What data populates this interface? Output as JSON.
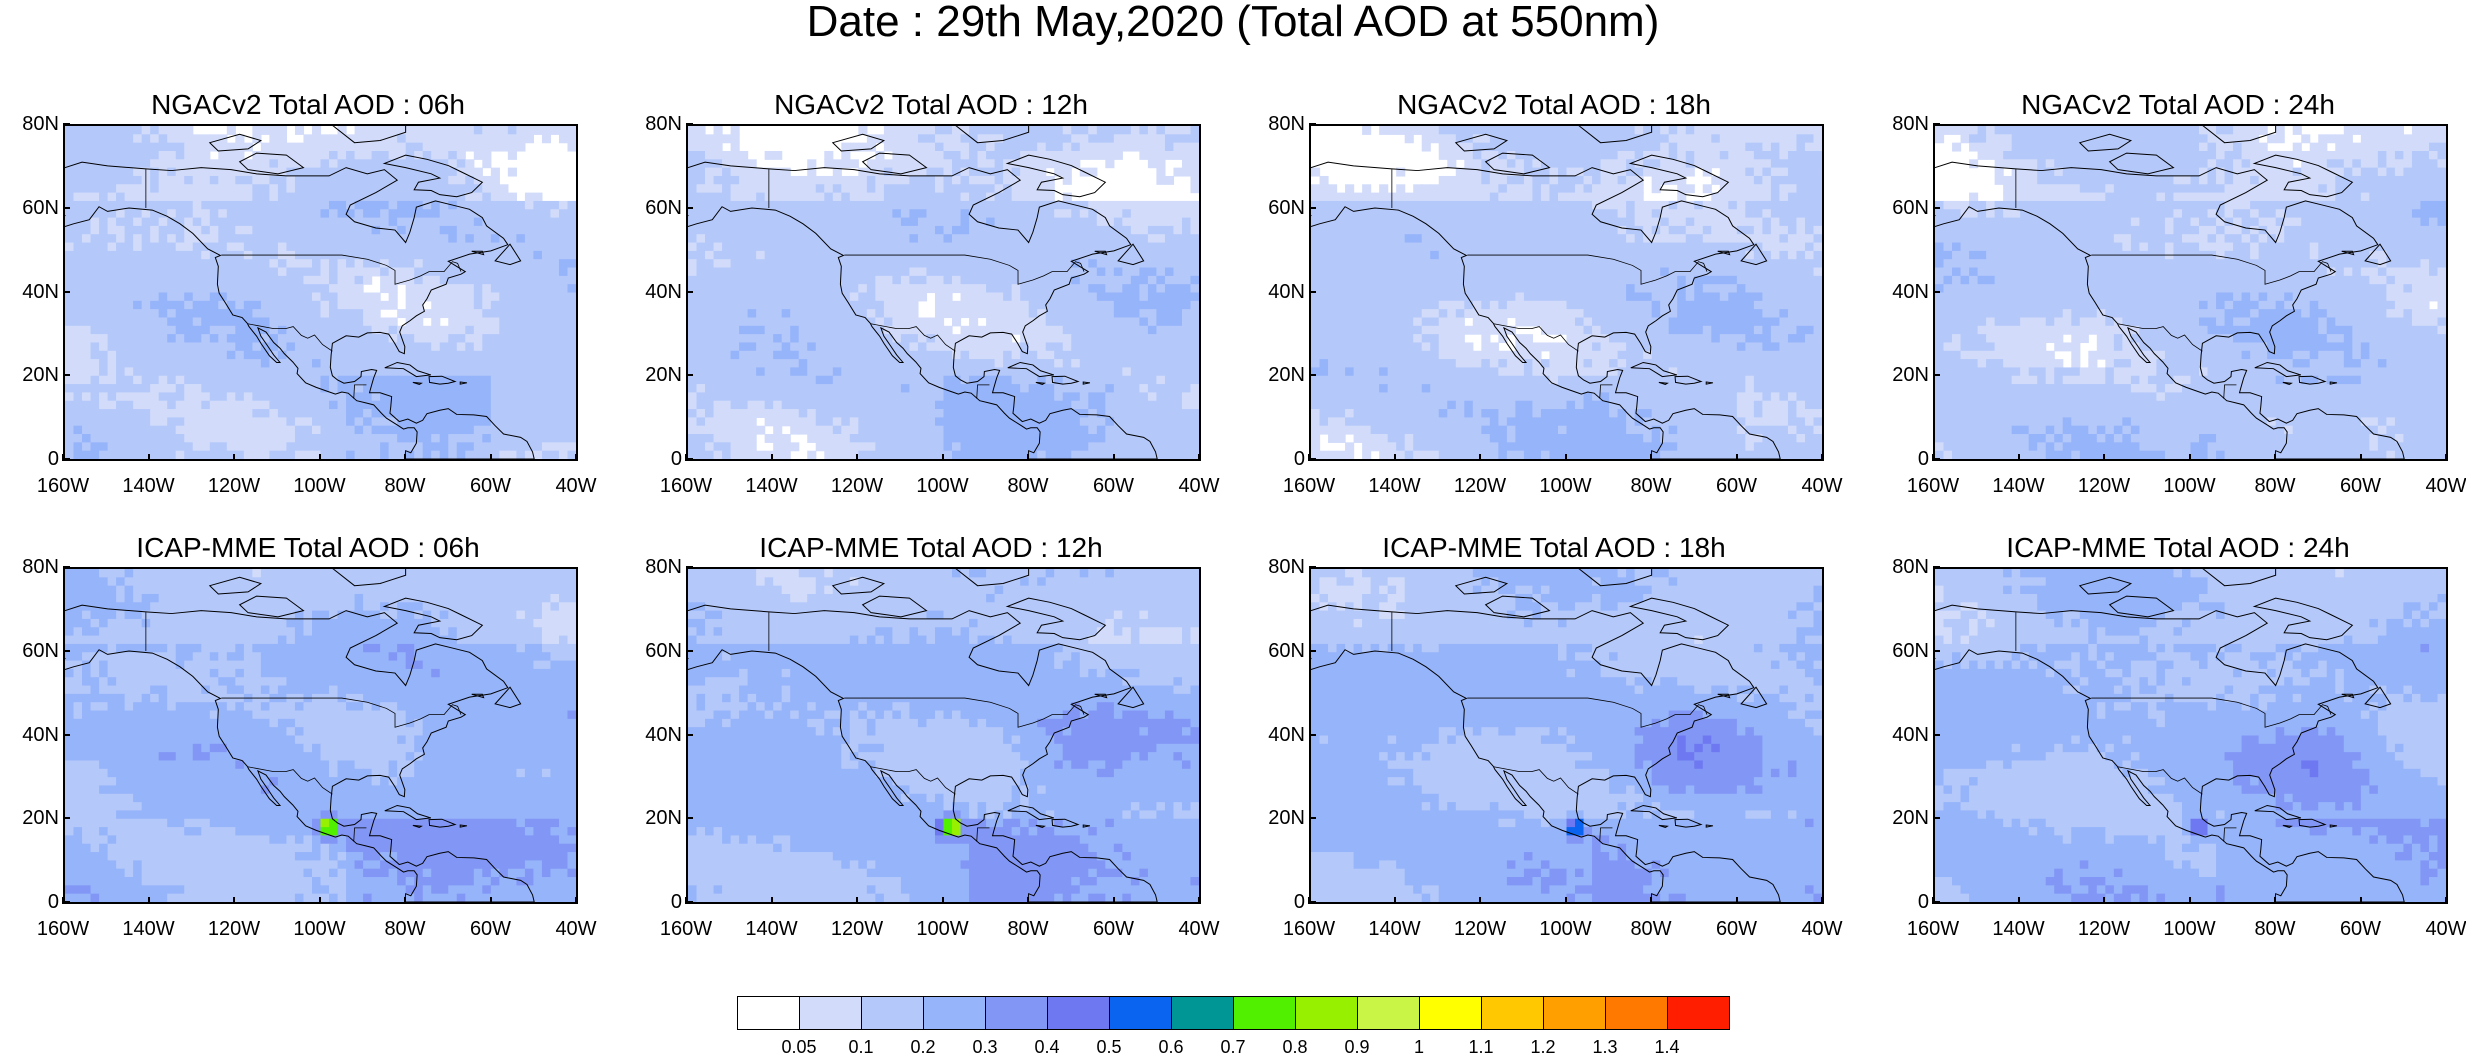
{
  "title": "Date : 29th May,2020 (Total AOD at 550nm)",
  "panels": [
    {
      "title": "NGACv2 Total AOD : 06h",
      "model": "NGAC",
      "hour": 6
    },
    {
      "title": "NGACv2 Total AOD : 12h",
      "model": "NGAC",
      "hour": 12
    },
    {
      "title": "NGACv2 Total AOD : 18h",
      "model": "NGAC",
      "hour": 18
    },
    {
      "title": "NGACv2 Total AOD : 24h",
      "model": "NGAC",
      "hour": 24
    },
    {
      "title": "ICAP-MME Total AOD : 06h",
      "model": "ICAP",
      "hour": 6
    },
    {
      "title": "ICAP-MME Total AOD : 12h",
      "model": "ICAP",
      "hour": 12
    },
    {
      "title": "ICAP-MME Total AOD : 18h",
      "model": "ICAP",
      "hour": 18
    },
    {
      "title": "ICAP-MME Total AOD : 24h",
      "model": "ICAP",
      "hour": 24
    }
  ],
  "lat_labels": [
    "80N",
    "60N",
    "40N",
    "20N",
    "0"
  ],
  "lon_labels": [
    "160W",
    "140W",
    "120W",
    "100W",
    "80W",
    "60W",
    "40W"
  ],
  "map_extent": {
    "lon": [
      -160,
      -40
    ],
    "lat": [
      0,
      80
    ]
  },
  "colorbar": {
    "labels": [
      "0.05",
      "0.1",
      "0.2",
      "0.3",
      "0.4",
      "0.5",
      "0.6",
      "0.7",
      "0.8",
      "0.9",
      "1",
      "1.1",
      "1.2",
      "1.3",
      "1.4"
    ],
    "colors": [
      "#ffffff",
      "#d2dcfa",
      "#b4c8fa",
      "#96b4fa",
      "#8296f5",
      "#6e78f0",
      "#0a64f0",
      "#009696",
      "#50f000",
      "#96f000",
      "#c8f546",
      "#ffff00",
      "#ffc800",
      "#ffa000",
      "#ff7800",
      "#ff1e00"
    ]
  }
}
